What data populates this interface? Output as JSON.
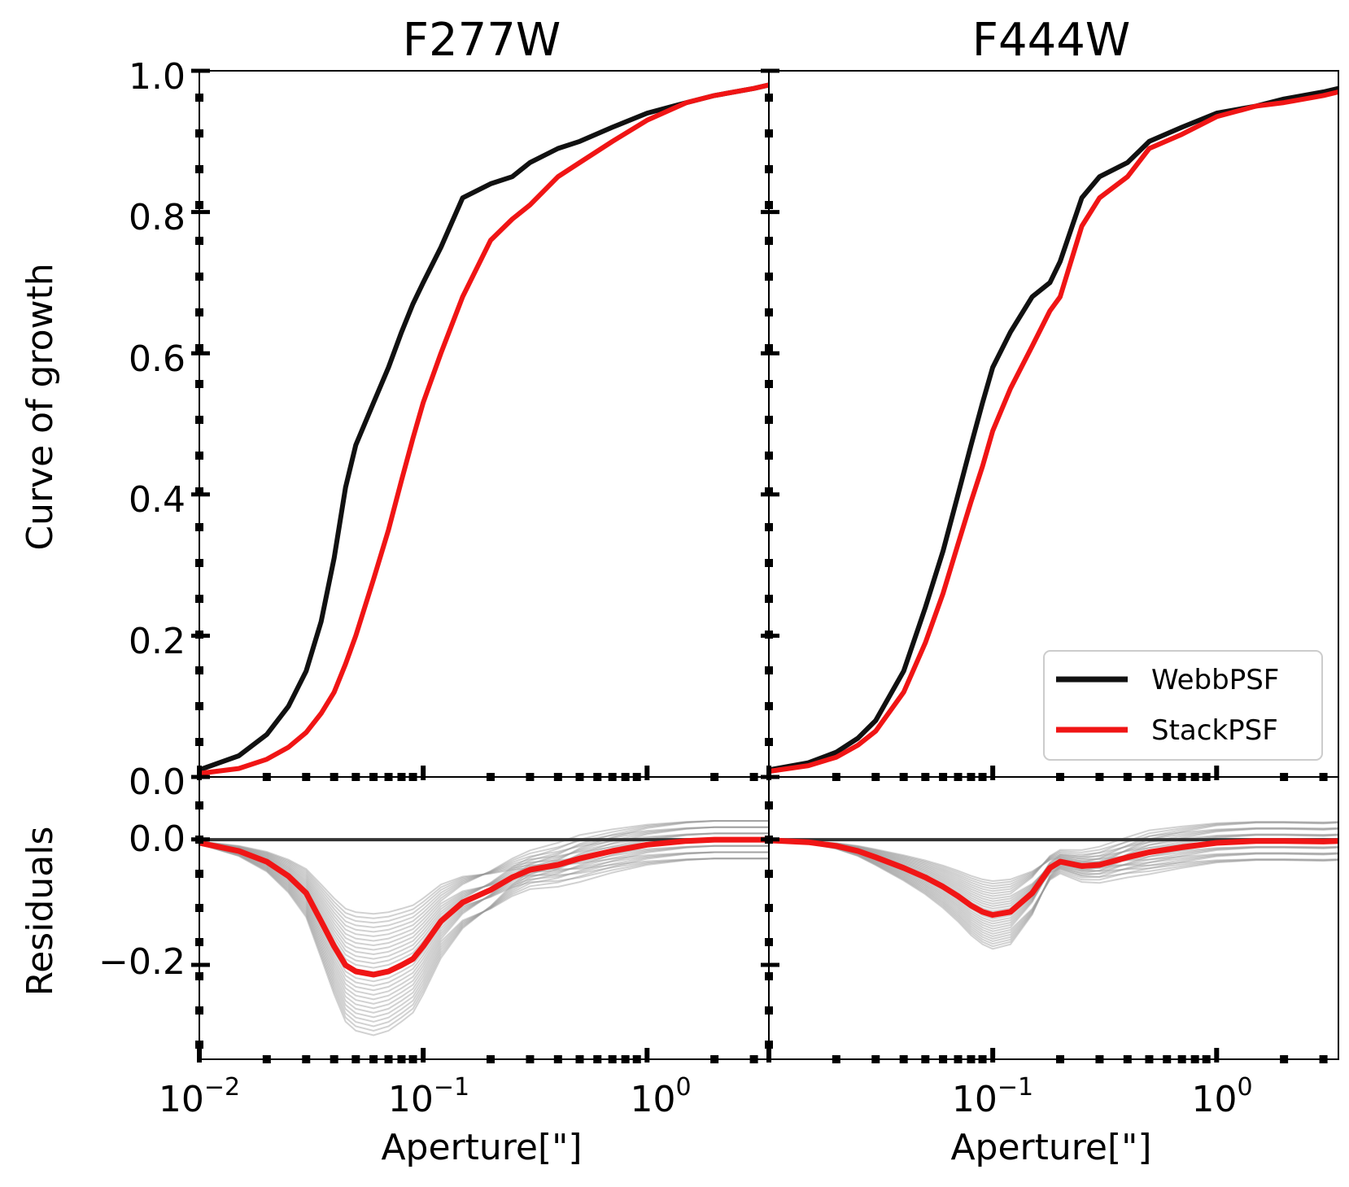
{
  "figure": {
    "ylabel_top": "Curve of growth",
    "ylabel_bottom": "Residuals"
  },
  "legend": {
    "entries": [
      {
        "label": "WebbPSF",
        "color": "#111111"
      },
      {
        "label": "StackPSF",
        "color": "#f01515"
      }
    ],
    "placement": "lower-right"
  },
  "colors": {
    "webbpsf": "#111111",
    "stackpsf": "#f01515",
    "residual_individual": "#9a9a9a",
    "zero_line": "#333333"
  },
  "chart_data": [
    {
      "type": "line",
      "panel": "top-left",
      "title": "F277W",
      "xlabel": "",
      "ylabel": "Curve of growth",
      "xscale": "log",
      "xlim": [
        0.01,
        3.5
      ],
      "ylim": [
        0,
        1.0
      ],
      "yticks": [
        "0.0",
        "0.2",
        "0.4",
        "0.6",
        "0.8",
        "1.0"
      ],
      "series": [
        {
          "name": "WebbPSF",
          "x": [
            0.01,
            0.015,
            0.02,
            0.025,
            0.03,
            0.035,
            0.04,
            0.045,
            0.05,
            0.06,
            0.07,
            0.08,
            0.09,
            0.1,
            0.12,
            0.15,
            0.2,
            0.25,
            0.3,
            0.4,
            0.5,
            0.7,
            1.0,
            1.5,
            2.0,
            3.0,
            3.5
          ],
          "y": [
            0.01,
            0.03,
            0.06,
            0.1,
            0.15,
            0.22,
            0.31,
            0.41,
            0.47,
            0.53,
            0.58,
            0.63,
            0.67,
            0.7,
            0.75,
            0.82,
            0.84,
            0.85,
            0.87,
            0.89,
            0.9,
            0.92,
            0.94,
            0.955,
            0.965,
            0.975,
            0.98
          ]
        },
        {
          "name": "StackPSF",
          "x": [
            0.01,
            0.015,
            0.02,
            0.025,
            0.03,
            0.035,
            0.04,
            0.045,
            0.05,
            0.06,
            0.07,
            0.08,
            0.09,
            0.1,
            0.12,
            0.15,
            0.2,
            0.25,
            0.3,
            0.4,
            0.5,
            0.7,
            1.0,
            1.5,
            2.0,
            3.0,
            3.5
          ],
          "y": [
            0.005,
            0.012,
            0.025,
            0.042,
            0.063,
            0.09,
            0.12,
            0.16,
            0.2,
            0.28,
            0.35,
            0.42,
            0.48,
            0.53,
            0.6,
            0.68,
            0.76,
            0.79,
            0.81,
            0.85,
            0.87,
            0.9,
            0.93,
            0.955,
            0.965,
            0.975,
            0.98
          ]
        }
      ]
    },
    {
      "type": "line",
      "panel": "top-right",
      "title": "F444W",
      "xlabel": "",
      "ylabel": "",
      "xscale": "log",
      "xlim": [
        0.01,
        3.5
      ],
      "ylim": [
        0,
        1.0
      ],
      "series": [
        {
          "name": "WebbPSF",
          "x": [
            0.01,
            0.015,
            0.02,
            0.025,
            0.03,
            0.04,
            0.05,
            0.06,
            0.07,
            0.08,
            0.09,
            0.1,
            0.12,
            0.15,
            0.18,
            0.2,
            0.25,
            0.3,
            0.4,
            0.5,
            0.7,
            1.0,
            1.5,
            2.0,
            3.0,
            3.5
          ],
          "y": [
            0.01,
            0.02,
            0.035,
            0.055,
            0.08,
            0.15,
            0.24,
            0.32,
            0.4,
            0.47,
            0.53,
            0.58,
            0.63,
            0.68,
            0.7,
            0.73,
            0.82,
            0.85,
            0.87,
            0.9,
            0.92,
            0.94,
            0.95,
            0.96,
            0.97,
            0.975
          ]
        },
        {
          "name": "StackPSF",
          "x": [
            0.01,
            0.015,
            0.02,
            0.025,
            0.03,
            0.04,
            0.05,
            0.06,
            0.07,
            0.08,
            0.09,
            0.1,
            0.12,
            0.15,
            0.18,
            0.2,
            0.25,
            0.3,
            0.4,
            0.5,
            0.7,
            1.0,
            1.5,
            2.0,
            3.0,
            3.5
          ],
          "y": [
            0.008,
            0.016,
            0.028,
            0.045,
            0.065,
            0.12,
            0.19,
            0.26,
            0.33,
            0.39,
            0.44,
            0.49,
            0.55,
            0.61,
            0.66,
            0.68,
            0.78,
            0.82,
            0.85,
            0.89,
            0.91,
            0.935,
            0.95,
            0.955,
            0.965,
            0.97
          ]
        }
      ]
    },
    {
      "type": "line",
      "panel": "bottom-left",
      "title": "",
      "xlabel": "Aperture[\"]",
      "ylabel": "Residuals",
      "xscale": "log",
      "xlim": [
        0.01,
        3.5
      ],
      "ylim": [
        -0.35,
        0.1
      ],
      "yticks": [
        "0.0",
        "−0.2"
      ],
      "xticks": [
        "10^-2",
        "10^-1",
        "10^0"
      ],
      "series": [
        {
          "name": "StackPSF",
          "x": [
            0.01,
            0.015,
            0.02,
            0.025,
            0.03,
            0.035,
            0.04,
            0.045,
            0.05,
            0.06,
            0.07,
            0.08,
            0.09,
            0.1,
            0.12,
            0.15,
            0.2,
            0.25,
            0.3,
            0.4,
            0.5,
            0.7,
            1.0,
            1.5,
            2.0,
            3.0,
            3.5
          ],
          "y": [
            -0.005,
            -0.018,
            -0.035,
            -0.058,
            -0.085,
            -0.13,
            -0.17,
            -0.2,
            -0.21,
            -0.215,
            -0.21,
            -0.2,
            -0.19,
            -0.17,
            -0.13,
            -0.1,
            -0.08,
            -0.06,
            -0.048,
            -0.04,
            -0.03,
            -0.018,
            -0.008,
            -0.002,
            0.0,
            0.0,
            0.0
          ]
        }
      ]
    },
    {
      "type": "line",
      "panel": "bottom-right",
      "title": "",
      "xlabel": "Aperture[\"]",
      "ylabel": "",
      "xscale": "log",
      "xlim": [
        0.01,
        3.5
      ],
      "ylim": [
        -0.35,
        0.1
      ],
      "xticks": [
        "10^-1",
        "10^0"
      ],
      "series": [
        {
          "name": "StackPSF",
          "x": [
            0.01,
            0.015,
            0.02,
            0.025,
            0.03,
            0.04,
            0.05,
            0.06,
            0.07,
            0.08,
            0.09,
            0.1,
            0.12,
            0.15,
            0.18,
            0.2,
            0.25,
            0.3,
            0.4,
            0.5,
            0.7,
            1.0,
            1.5,
            2.0,
            3.0,
            3.5
          ],
          "y": [
            -0.001,
            -0.004,
            -0.01,
            -0.018,
            -0.028,
            -0.045,
            -0.06,
            -0.075,
            -0.09,
            -0.105,
            -0.115,
            -0.12,
            -0.115,
            -0.085,
            -0.045,
            -0.035,
            -0.042,
            -0.04,
            -0.028,
            -0.02,
            -0.012,
            -0.005,
            -0.002,
            -0.002,
            -0.003,
            -0.002
          ]
        }
      ]
    }
  ]
}
